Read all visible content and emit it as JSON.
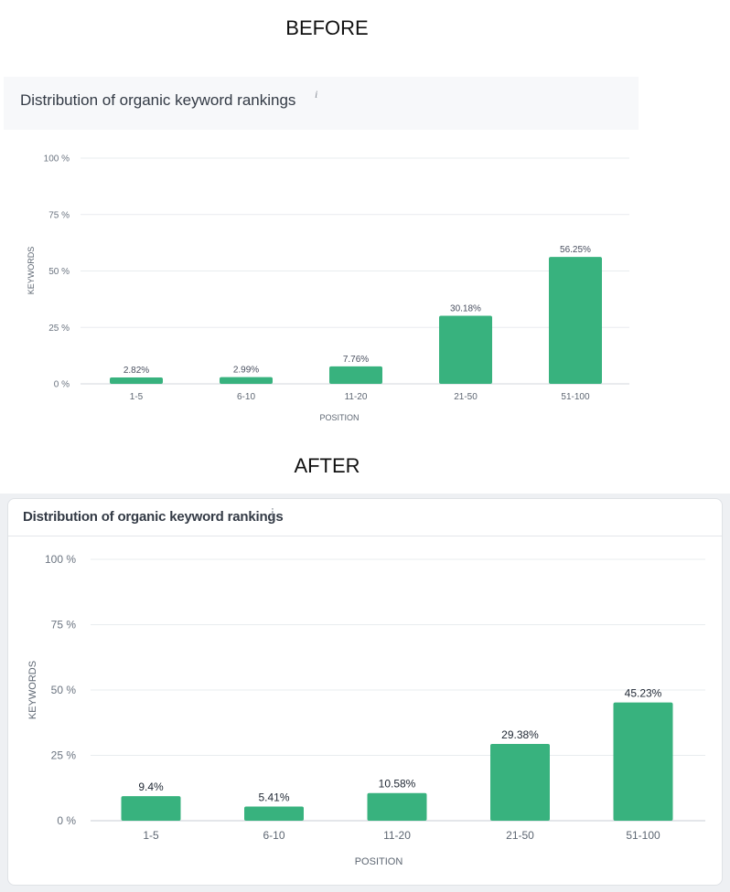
{
  "headings": {
    "before": "BEFORE",
    "after": "AFTER"
  },
  "chart_data": [
    {
      "type": "bar",
      "panel": "before",
      "title": "Distribution of organic keyword rankings",
      "info_icon": "info-icon",
      "xlabel": "POSITION",
      "ylabel": "KEYWORDS",
      "categories": [
        "1-5",
        "6-10",
        "11-20",
        "21-50",
        "51-100"
      ],
      "values": [
        2.82,
        2.99,
        7.76,
        30.18,
        56.25
      ],
      "value_labels": [
        "2.82%",
        "2.99%",
        "7.76%",
        "30.18%",
        "56.25%"
      ],
      "yticks": [
        0,
        25,
        50,
        75,
        100
      ],
      "ytick_labels": [
        "0 %",
        "25 %",
        "50 %",
        "75 %",
        "100 %"
      ],
      "ylim": [
        0,
        100
      ],
      "grid": true,
      "bar_color": "#38b27e"
    },
    {
      "type": "bar",
      "panel": "after",
      "title": "Distribution of organic keyword rankings",
      "info_icon": "info-icon",
      "xlabel": "POSITION",
      "ylabel": "KEYWORDS",
      "categories": [
        "1-5",
        "6-10",
        "11-20",
        "21-50",
        "51-100"
      ],
      "values": [
        9.4,
        5.41,
        10.58,
        29.38,
        45.23
      ],
      "value_labels": [
        "9.4%",
        "5.41%",
        "10.58%",
        "29.38%",
        "45.23%"
      ],
      "yticks": [
        0,
        25,
        50,
        75,
        100
      ],
      "ytick_labels": [
        "0 %",
        "25 %",
        "50 %",
        "75 %",
        "100 %"
      ],
      "ylim": [
        0,
        100
      ],
      "grid": true,
      "bar_color": "#38b27e"
    }
  ]
}
